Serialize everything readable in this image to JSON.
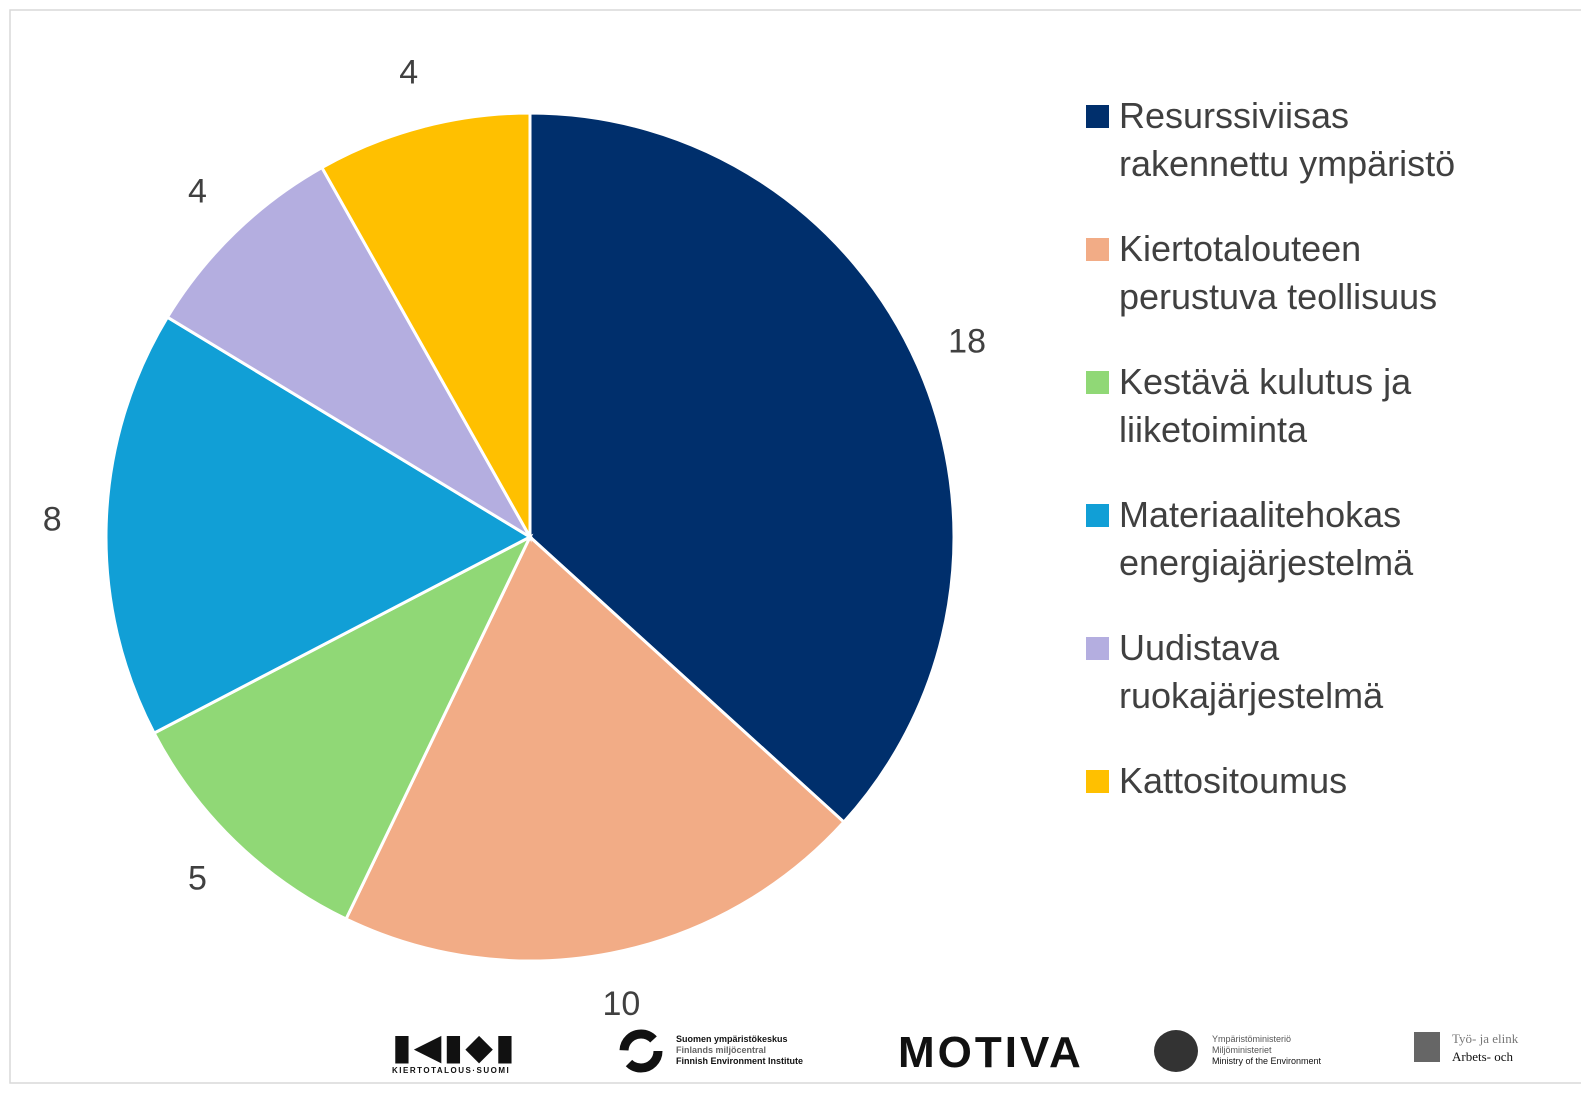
{
  "chart_data": {
    "type": "pie",
    "categories": [
      "Resurssiviisas rakennettu ympäristö",
      "Kiertotalouteen perustuva teollisuus",
      "Kestävä kulutus ja liiketoiminta",
      "Materiaalitehokas energiajärjestelmä",
      "Uudistava ruokajärjestelmä",
      "Kattositoumus"
    ],
    "values": [
      18,
      10,
      5,
      8,
      4,
      4
    ],
    "colors": [
      "#002f6c",
      "#f2ac86",
      "#90d876",
      "#119fd6",
      "#b4aee0",
      "#ffc000"
    ],
    "legend": "right"
  },
  "logos": {
    "kiertotalous": "KIERTOTALOUS·SUOMI",
    "syke": [
      "Suomen ympäristökeskus",
      "Finlands miljöcentral",
      "Finnish Environment Institute"
    ],
    "motiva": "MOTIVA",
    "ministry": [
      "Ympäristöministeriö",
      "Miljöministeriet",
      "Ministry of the Environment"
    ],
    "tem": [
      "Työ- ja elink",
      "Arbets- och"
    ]
  }
}
